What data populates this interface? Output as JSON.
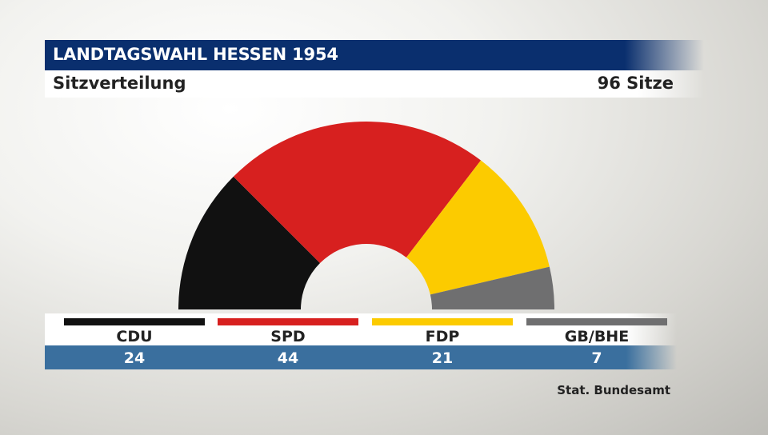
{
  "header": {
    "title": "LANDTAGSWAHL HESSEN 1954",
    "subtitle": "Sitzverteilung",
    "total": "96 Sitze"
  },
  "chart_data": {
    "type": "pie",
    "subtype": "parliament-semicircle",
    "total_seats": 96,
    "categories": [
      "CDU",
      "SPD",
      "FDP",
      "GB/BHE"
    ],
    "values": [
      24,
      44,
      21,
      7
    ],
    "colors": [
      "#111111",
      "#d7201f",
      "#fccb00",
      "#6f6f70"
    ],
    "value_labels": [
      "24",
      "44",
      "21",
      "7"
    ]
  },
  "source": "Stat. Bundesamt"
}
